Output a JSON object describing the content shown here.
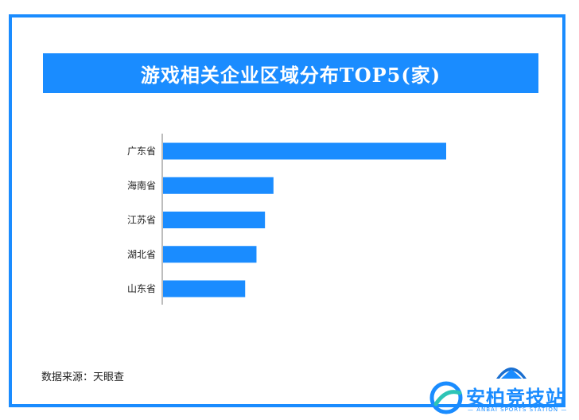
{
  "chart_data": {
    "type": "bar",
    "orientation": "horizontal",
    "title": "游戏相关企业区域分布TOP5(家)",
    "categories": [
      "广东省",
      "海南省",
      "江苏省",
      "湖北省",
      "山东省"
    ],
    "values": [
      100,
      39,
      36,
      33,
      29
    ],
    "xlim": [
      0,
      100
    ],
    "grid": false,
    "bar_color": "#1a8cff",
    "title_bg_color": "#1a8cff"
  },
  "source_text": "数据来源：天眼查",
  "logo": {
    "name": "安柏竞技站",
    "subtitle": "— ANBAI SPORTS STATION —"
  }
}
